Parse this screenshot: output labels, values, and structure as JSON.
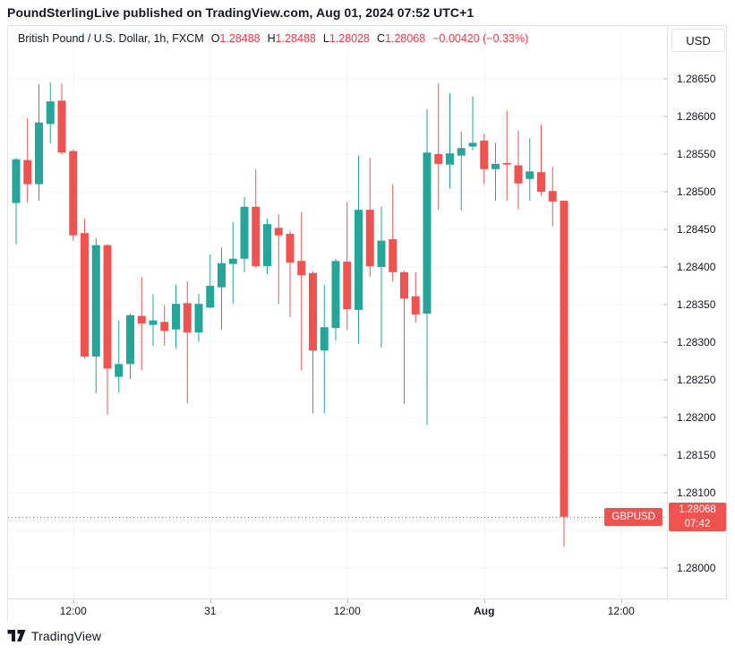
{
  "header": {
    "text": "PoundSterlingLive published on TradingView.com, Aug 01, 2024 07:52 UTC+1"
  },
  "legend": {
    "symbol_title": "British Pound / U.S. Dollar, 1h, FXCM",
    "ohlc": [
      {
        "label": "O",
        "value": "1.28488"
      },
      {
        "label": "H",
        "value": "1.28488"
      },
      {
        "label": "L",
        "value": "1.28028"
      },
      {
        "label": "C",
        "value": "1.28068"
      }
    ],
    "change": "−0.00420 (−0.33%)"
  },
  "price_axis": {
    "currency_button": "USD",
    "last_price_label": {
      "symbol": "GBPUSD",
      "price": "1.28068",
      "time": "07:42"
    }
  },
  "footer": {
    "brand": "TradingView"
  },
  "colors": {
    "up": "#26a69a",
    "down": "#ef5350",
    "accent_red": "#f23645",
    "grid": "#f0f3fa",
    "border": "#e0e3eb",
    "tick": "#b2b5be",
    "text": "#131722",
    "label_bg": "#ef5350"
  },
  "chart_data": {
    "type": "candlestick",
    "symbol": "GBPUSD",
    "exchange": "FXCM",
    "interval": "1h",
    "title": "British Pound / U.S. Dollar, 1h, FXCM",
    "price_line": 1.28068,
    "y_axis": {
      "min": 1.28,
      "max": 1.2865,
      "step": 0.0005,
      "labels": [
        "1.28650",
        "1.28600",
        "1.28550",
        "1.28500",
        "1.28450",
        "1.28400",
        "1.28350",
        "1.28300",
        "1.28250",
        "1.28200",
        "1.28150",
        "1.28100",
        "1.28000"
      ]
    },
    "x_axis": {
      "ticks": [
        {
          "label": "12:00",
          "index": 5,
          "bold": false
        },
        {
          "label": "31",
          "index": 17,
          "bold": false
        },
        {
          "label": "12:00",
          "index": 29,
          "bold": false
        },
        {
          "label": "Aug",
          "index": 41,
          "bold": true
        },
        {
          "label": "12:00",
          "index": 53,
          "bold": false
        }
      ]
    },
    "candles": [
      [
        "Jul 30 07:00",
        1.28485,
        1.28545,
        1.2843,
        1.28543
      ],
      [
        "Jul 30 08:00",
        1.28542,
        1.28598,
        1.28486,
        1.2851
      ],
      [
        "Jul 30 09:00",
        1.2851,
        1.28643,
        1.28488,
        1.28592
      ],
      [
        "Jul 30 10:00",
        1.2859,
        1.28645,
        1.28564,
        1.2862
      ],
      [
        "Jul 30 11:00",
        1.28621,
        1.28644,
        1.2855,
        1.28552
      ],
      [
        "Jul 30 12:00",
        1.28554,
        1.28556,
        1.28435,
        1.28442
      ],
      [
        "Jul 30 13:00",
        1.28445,
        1.28464,
        1.28278,
        1.28281
      ],
      [
        "Jul 30 14:00",
        1.28281,
        1.28439,
        1.28232,
        1.28429
      ],
      [
        "Jul 30 15:00",
        1.28429,
        1.2843,
        1.28204,
        1.28265
      ],
      [
        "Jul 30 16:00",
        1.28254,
        1.28329,
        1.28233,
        1.28271
      ],
      [
        "Jul 30 17:00",
        1.28271,
        1.28338,
        1.28251,
        1.28336
      ],
      [
        "Jul 30 18:00",
        1.28335,
        1.28387,
        1.28263,
        1.28325
      ],
      [
        "Jul 30 19:00",
        1.28323,
        1.28364,
        1.28295,
        1.28329
      ],
      [
        "Jul 30 20:00",
        1.28327,
        1.28349,
        1.28295,
        1.28315
      ],
      [
        "Jul 30 21:00",
        1.28317,
        1.28377,
        1.28292,
        1.28351
      ],
      [
        "Jul 30 22:00",
        1.28352,
        1.28381,
        1.28219,
        1.28313
      ],
      [
        "Jul 30 23:00",
        1.28313,
        1.28364,
        1.28301,
        1.28351
      ],
      [
        "Jul 31 00:00",
        1.28346,
        1.28417,
        1.28345,
        1.28375
      ],
      [
        "Jul 31 01:00",
        1.28373,
        1.28426,
        1.28317,
        1.28405
      ],
      [
        "Jul 31 02:00",
        1.28404,
        1.2846,
        1.28351,
        1.28411
      ],
      [
        "Jul 31 03:00",
        1.28411,
        1.28493,
        1.28393,
        1.2848
      ],
      [
        "Jul 31 04:00",
        1.2848,
        1.2853,
        1.28399,
        1.28401
      ],
      [
        "Jul 31 05:00",
        1.28401,
        1.28464,
        1.2839,
        1.28457
      ],
      [
        "Jul 31 06:00",
        1.28452,
        1.2847,
        1.28351,
        1.28442
      ],
      [
        "Jul 31 07:00",
        1.28444,
        1.28448,
        1.28333,
        1.28406
      ],
      [
        "Jul 31 08:00",
        1.28408,
        1.28473,
        1.28263,
        1.28389
      ],
      [
        "Jul 31 09:00",
        1.28392,
        1.28394,
        1.28206,
        1.28289
      ],
      [
        "Jul 31 10:00",
        1.28289,
        1.28376,
        1.28206,
        1.2832
      ],
      [
        "Jul 31 11:00",
        1.28319,
        1.28411,
        1.28302,
        1.28408
      ],
      [
        "Jul 31 12:00",
        1.28407,
        1.28486,
        1.28316,
        1.28344
      ],
      [
        "Jul 31 13:00",
        1.28343,
        1.28548,
        1.28298,
        1.28476
      ],
      [
        "Jul 31 14:00",
        1.28476,
        1.28545,
        1.28387,
        1.28401
      ],
      [
        "Jul 31 15:00",
        1.284,
        1.2848,
        1.28293,
        1.28435
      ],
      [
        "Jul 31 16:00",
        1.28437,
        1.2851,
        1.28381,
        1.28393
      ],
      [
        "Jul 31 17:00",
        1.28393,
        1.28395,
        1.28218,
        1.28358
      ],
      [
        "Jul 31 18:00",
        1.28361,
        1.28393,
        1.28326,
        1.28337
      ],
      [
        "Jul 31 19:00",
        1.28338,
        1.2861,
        1.2819,
        1.28552
      ],
      [
        "Jul 31 20:00",
        1.2855,
        1.28644,
        1.28476,
        1.28537
      ],
      [
        "Jul 31 21:00",
        1.28536,
        1.28631,
        1.28504,
        1.28551
      ],
      [
        "Jul 31 22:00",
        1.28548,
        1.2858,
        1.28475,
        1.28558
      ],
      [
        "Jul 31 23:00",
        1.2856,
        1.28627,
        1.28555,
        1.28565
      ],
      [
        "Aug 1 00:00",
        1.28568,
        1.28577,
        1.2851,
        1.2853
      ],
      [
        "Aug 1 01:00",
        1.2853,
        1.28565,
        1.28488,
        1.28537
      ],
      [
        "Aug 1 02:00",
        1.28538,
        1.28608,
        1.28488,
        1.28536
      ],
      [
        "Aug 1 03:00",
        1.28535,
        1.28581,
        1.28477,
        1.28511
      ],
      [
        "Aug 1 04:00",
        1.28517,
        1.28571,
        1.28488,
        1.28527
      ],
      [
        "Aug 1 05:00",
        1.28526,
        1.28589,
        1.28495,
        1.285
      ],
      [
        "Aug 1 06:00",
        1.28501,
        1.28533,
        1.28454,
        1.28487
      ],
      [
        "Aug 1 07:00",
        1.28488,
        1.28488,
        1.28028,
        1.28068
      ]
    ]
  }
}
